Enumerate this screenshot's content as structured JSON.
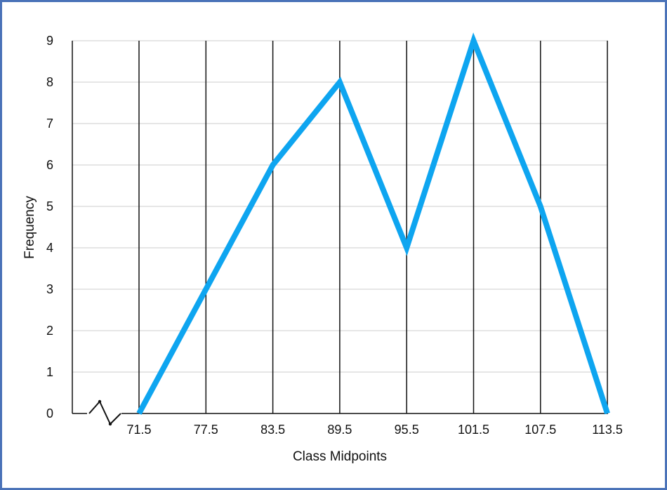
{
  "chart_data": {
    "type": "line",
    "x": [
      "71.5",
      "77.5",
      "83.5",
      "89.5",
      "95.5",
      "101.5",
      "107.5",
      "113.5"
    ],
    "values": [
      0,
      3,
      6,
      8,
      4,
      9,
      5,
      0
    ],
    "xlabel": "Class Midpoints",
    "ylabel": "Frequency",
    "ylim": [
      0,
      9
    ],
    "y_ticks": [
      "0",
      "1",
      "2",
      "3",
      "4",
      "5",
      "6",
      "7",
      "8",
      "9"
    ],
    "grid": true,
    "axis_break": true,
    "colors": {
      "line": "#0ea5f0",
      "frame": "#4a72b8",
      "gridline": "#cccccc",
      "vertical_line": "#111111"
    }
  }
}
